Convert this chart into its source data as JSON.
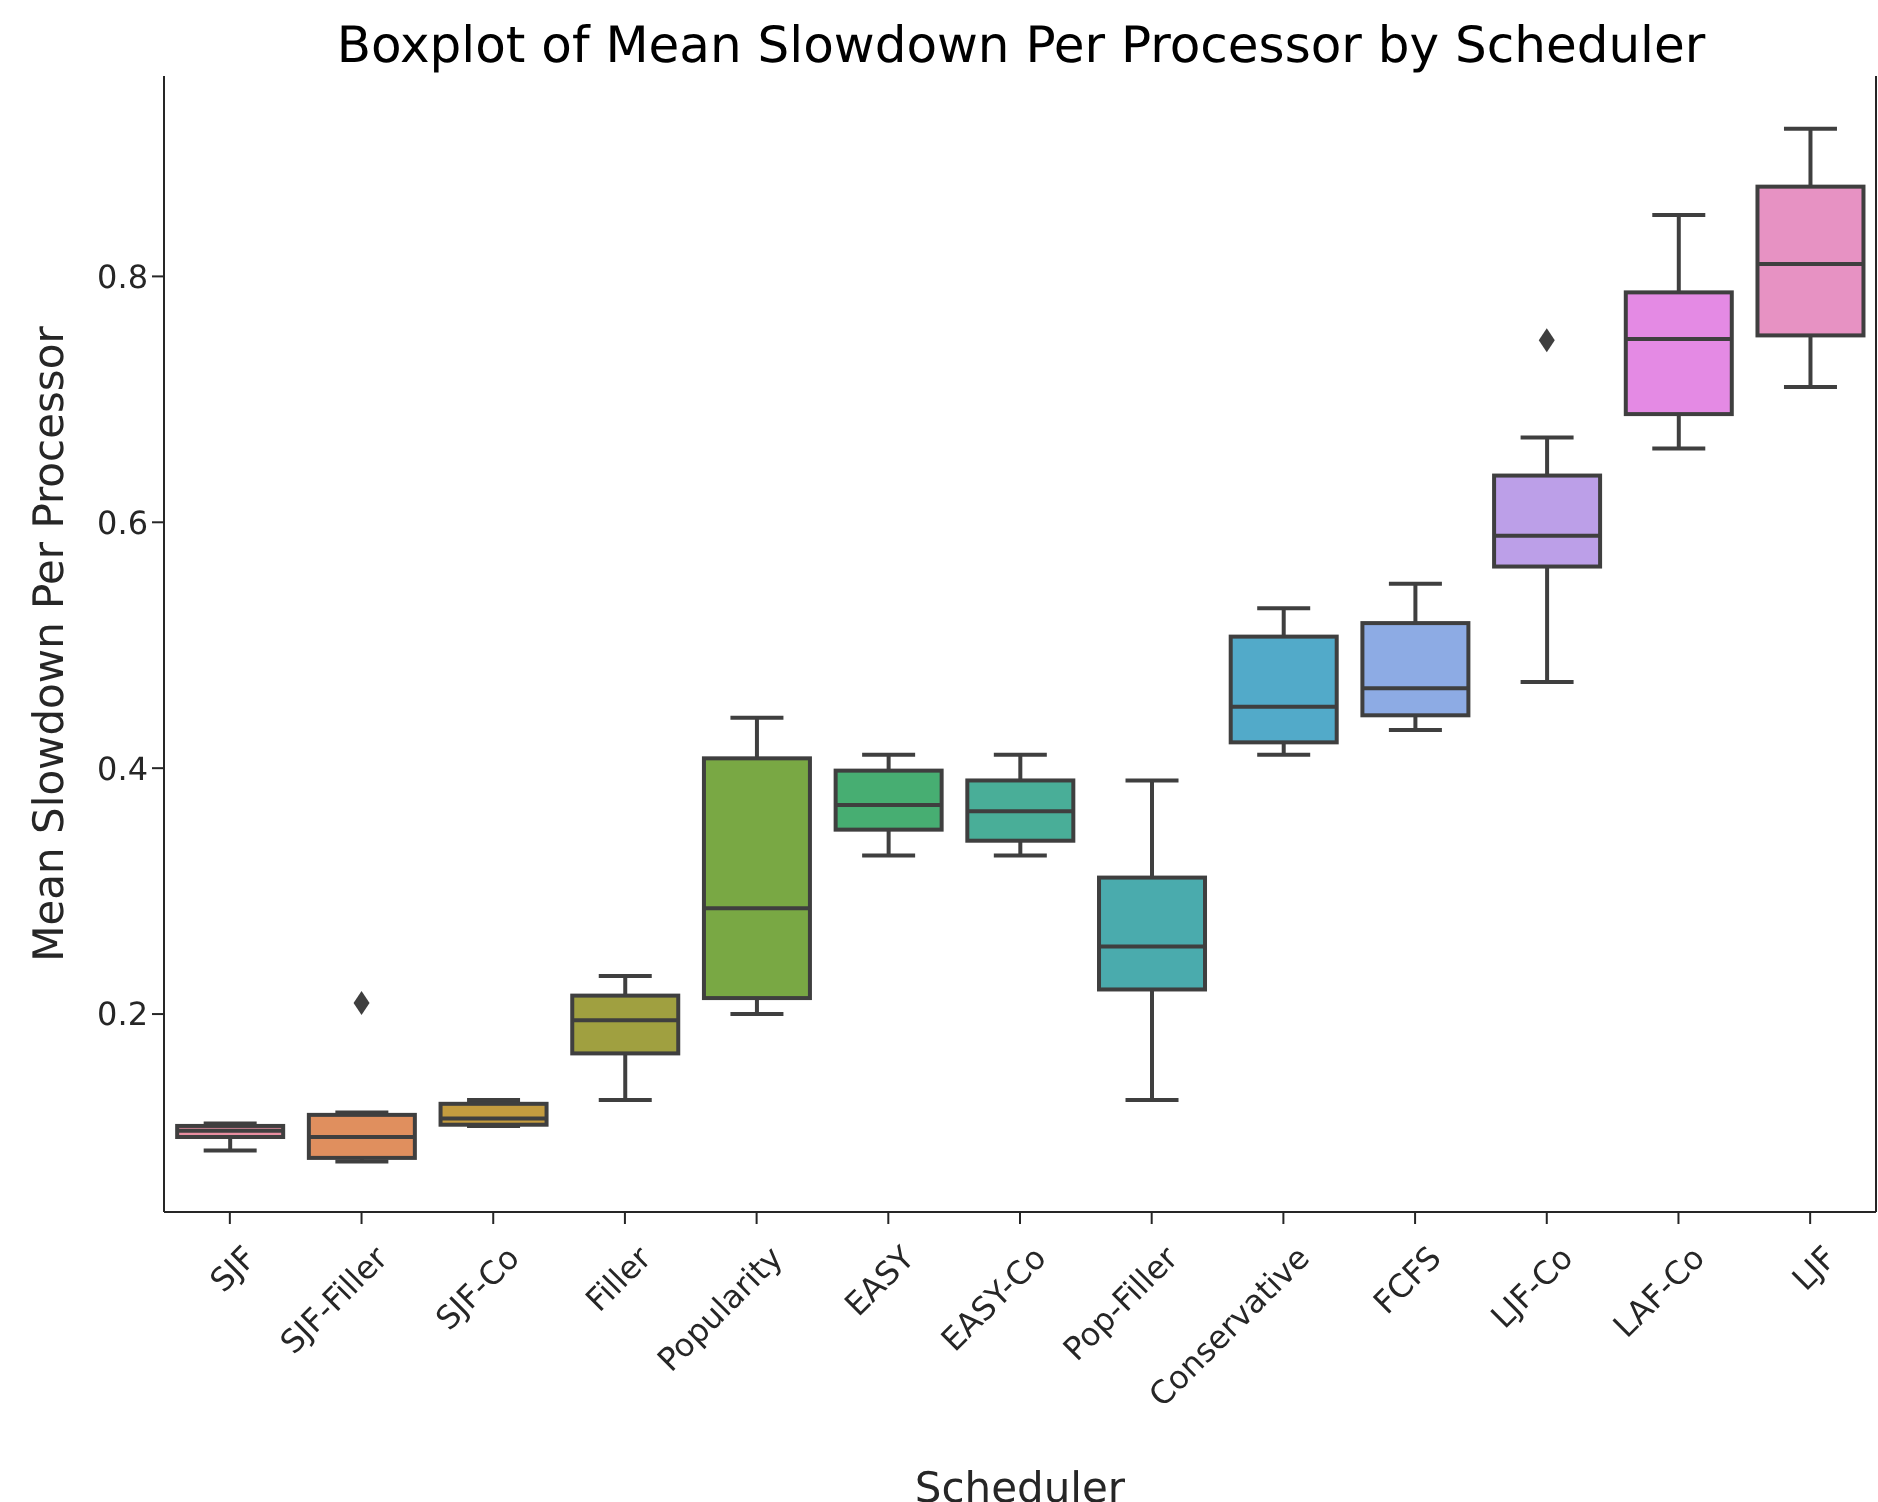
{
  "chart_data": {
    "type": "box",
    "title": "Boxplot of Mean Slowdown Per Processor by Scheduler",
    "xlabel": "Scheduler",
    "ylabel": "Mean Slowdown Per Processor",
    "categories": [
      "SJF",
      "SJF-Filler",
      "SJF-Co",
      "Filler",
      "Popularity",
      "EASY",
      "EASY-Co",
      "Pop-Filler",
      "Conservative",
      "FCFS",
      "LJF-Co",
      "LAF-Co",
      "LJF"
    ],
    "colors": [
      "#e88ea0",
      "#e08f5e",
      "#c49c3f",
      "#a0a040",
      "#79a844",
      "#47ae72",
      "#49ae98",
      "#4aabad",
      "#52aac9",
      "#8dabe4",
      "#bc9fe8",
      "#e48ae4",
      "#e792c3"
    ],
    "boxes": [
      {
        "low": 0.089,
        "q1": 0.1,
        "median": 0.105,
        "q3": 0.109,
        "high": 0.111
      },
      {
        "low": 0.08,
        "q1": 0.083,
        "median": 0.1,
        "q3": 0.118,
        "high": 0.12,
        "outliers": [
          0.209
        ]
      },
      {
        "low": 0.109,
        "q1": 0.11,
        "median": 0.115,
        "q3": 0.127,
        "high": 0.13
      },
      {
        "low": 0.13,
        "q1": 0.168,
        "median": 0.195,
        "q3": 0.215,
        "high": 0.231
      },
      {
        "low": 0.2,
        "q1": 0.213,
        "median": 0.286,
        "q3": 0.408,
        "high": 0.441
      },
      {
        "low": 0.329,
        "q1": 0.35,
        "median": 0.37,
        "q3": 0.398,
        "high": 0.411
      },
      {
        "low": 0.329,
        "q1": 0.341,
        "median": 0.365,
        "q3": 0.39,
        "high": 0.411
      },
      {
        "low": 0.13,
        "q1": 0.22,
        "median": 0.255,
        "q3": 0.311,
        "high": 0.39
      },
      {
        "low": 0.411,
        "q1": 0.421,
        "median": 0.45,
        "q3": 0.507,
        "high": 0.53
      },
      {
        "low": 0.431,
        "q1": 0.443,
        "median": 0.465,
        "q3": 0.518,
        "high": 0.55
      },
      {
        "low": 0.47,
        "q1": 0.564,
        "median": 0.589,
        "q3": 0.638,
        "high": 0.669,
        "outliers": [
          0.748
        ]
      },
      {
        "low": 0.66,
        "q1": 0.688,
        "median": 0.749,
        "q3": 0.787,
        "high": 0.85
      },
      {
        "low": 0.71,
        "q1": 0.752,
        "median": 0.81,
        "q3": 0.873,
        "high": 0.92
      }
    ],
    "ylim": [
      0.039,
      0.963
    ],
    "yticks": [
      0.2,
      0.4,
      0.6,
      0.8
    ],
    "grid": false,
    "legend": false
  }
}
